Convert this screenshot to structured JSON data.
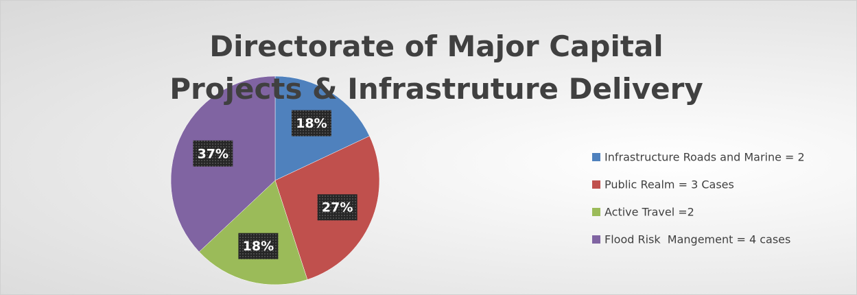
{
  "chart_data": {
    "type": "pie",
    "title": "Directorate of Major Capital Projects & Infrastruture Delivery",
    "categories": [
      "Infrastructure Roads and Marine = 2",
      "Public Realm = 3 Cases",
      "Active Travel =2",
      "Flood Risk  Mangement = 4 cases"
    ],
    "values": [
      18,
      27,
      18,
      37
    ],
    "value_labels": [
      "18%",
      "27%",
      "18%",
      "37%"
    ],
    "colors": [
      "#4f81bd",
      "#c0504d",
      "#9bbb59",
      "#8064a2"
    ],
    "legend": "right"
  }
}
